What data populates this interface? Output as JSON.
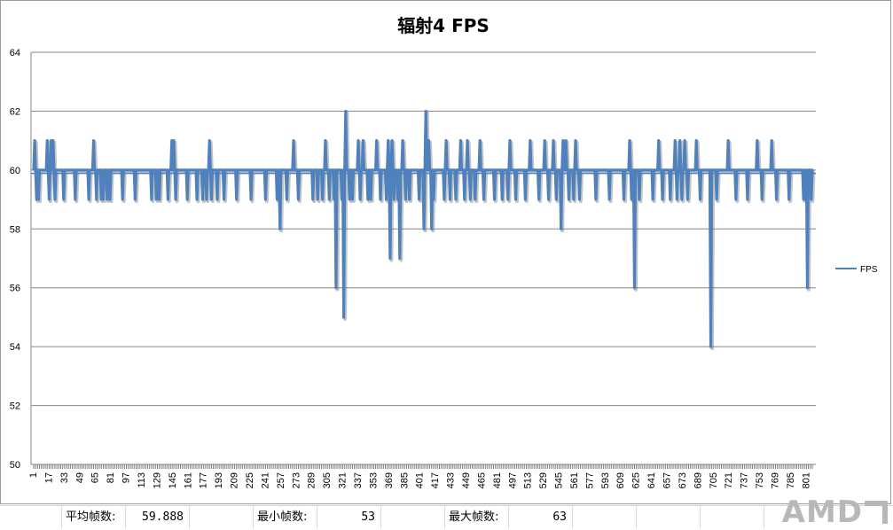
{
  "chart_data": {
    "type": "line",
    "title": "辐射4 FPS",
    "xlabel": "",
    "ylabel": "",
    "ylim": [
      50,
      64
    ],
    "yticks": [
      50,
      52,
      54,
      56,
      58,
      60,
      62,
      64
    ],
    "x_range": [
      1,
      808
    ],
    "xticks": [
      1,
      17,
      33,
      49,
      65,
      81,
      97,
      113,
      129,
      145,
      161,
      177,
      193,
      209,
      225,
      241,
      257,
      273,
      289,
      305,
      321,
      337,
      353,
      369,
      385,
      401,
      417,
      433,
      449,
      465,
      481,
      497,
      513,
      529,
      545,
      561,
      577,
      593,
      609,
      625,
      641,
      657,
      673,
      689,
      705,
      721,
      737,
      753,
      769,
      785,
      801
    ],
    "grid": true,
    "legend_position": "right",
    "colors": {
      "series": "#4f81bd",
      "average": "#4f81bd",
      "grid": "#868686"
    },
    "average_line": 59.888,
    "series": [
      {
        "name": "FPS",
        "baseline": 60,
        "excursions": [
          [
            2,
            61
          ],
          [
            4,
            59
          ],
          [
            6,
            59
          ],
          [
            15,
            61
          ],
          [
            17,
            59
          ],
          [
            19,
            61
          ],
          [
            21,
            61
          ],
          [
            23,
            59
          ],
          [
            32,
            59
          ],
          [
            44,
            59
          ],
          [
            58,
            59
          ],
          [
            63,
            61
          ],
          [
            66,
            59
          ],
          [
            71,
            59
          ],
          [
            73,
            59
          ],
          [
            77,
            59
          ],
          [
            80,
            59
          ],
          [
            93,
            59
          ],
          [
            106,
            59
          ],
          [
            123,
            59
          ],
          [
            128,
            59
          ],
          [
            131,
            59
          ],
          [
            140,
            59
          ],
          [
            144,
            61
          ],
          [
            146,
            61
          ],
          [
            148,
            59
          ],
          [
            160,
            59
          ],
          [
            170,
            59
          ],
          [
            176,
            59
          ],
          [
            180,
            59
          ],
          [
            183,
            61
          ],
          [
            185,
            59
          ],
          [
            191,
            59
          ],
          [
            198,
            59
          ],
          [
            211,
            59
          ],
          [
            226,
            59
          ],
          [
            241,
            59
          ],
          [
            253,
            59
          ],
          [
            256,
            58
          ],
          [
            263,
            59
          ],
          [
            270,
            61
          ],
          [
            275,
            59
          ],
          [
            290,
            59
          ],
          [
            295,
            59
          ],
          [
            300,
            59
          ],
          [
            303,
            61
          ],
          [
            307,
            59
          ],
          [
            312,
            59
          ],
          [
            314,
            56
          ],
          [
            320,
            59
          ],
          [
            322,
            55
          ],
          [
            324,
            62
          ],
          [
            328,
            59
          ],
          [
            331,
            59
          ],
          [
            337,
            61
          ],
          [
            339,
            59
          ],
          [
            342,
            61
          ],
          [
            347,
            59
          ],
          [
            350,
            59
          ],
          [
            356,
            61
          ],
          [
            360,
            59
          ],
          [
            366,
            59
          ],
          [
            368,
            61
          ],
          [
            370,
            57
          ],
          [
            372,
            61
          ],
          [
            374,
            59
          ],
          [
            378,
            59
          ],
          [
            380,
            57
          ],
          [
            383,
            61
          ],
          [
            386,
            59
          ],
          [
            390,
            59
          ],
          [
            400,
            59
          ],
          [
            405,
            58
          ],
          [
            407,
            62
          ],
          [
            410,
            61
          ],
          [
            413,
            58
          ],
          [
            415,
            59
          ],
          [
            426,
            59
          ],
          [
            428,
            61
          ],
          [
            432,
            59
          ],
          [
            438,
            59
          ],
          [
            443,
            61
          ],
          [
            447,
            59
          ],
          [
            450,
            61
          ],
          [
            453,
            59
          ],
          [
            458,
            59
          ],
          [
            463,
            61
          ],
          [
            467,
            59
          ],
          [
            478,
            59
          ],
          [
            486,
            59
          ],
          [
            492,
            59
          ],
          [
            494,
            61
          ],
          [
            500,
            59
          ],
          [
            510,
            59
          ],
          [
            515,
            61
          ],
          [
            524,
            59
          ],
          [
            530,
            61
          ],
          [
            534,
            59
          ],
          [
            539,
            61
          ],
          [
            542,
            59
          ],
          [
            547,
            58
          ],
          [
            549,
            61
          ],
          [
            552,
            61
          ],
          [
            555,
            59
          ],
          [
            560,
            59
          ],
          [
            562,
            61
          ],
          [
            566,
            59
          ],
          [
            583,
            59
          ],
          [
            597,
            59
          ],
          [
            612,
            59
          ],
          [
            618,
            61
          ],
          [
            620,
            59
          ],
          [
            623,
            56
          ],
          [
            628,
            59
          ],
          [
            642,
            59
          ],
          [
            648,
            61
          ],
          [
            652,
            59
          ],
          [
            660,
            59
          ],
          [
            665,
            61
          ],
          [
            667,
            59
          ],
          [
            670,
            61
          ],
          [
            672,
            59
          ],
          [
            675,
            61
          ],
          [
            678,
            59
          ],
          [
            687,
            61
          ],
          [
            691,
            59
          ],
          [
            702,
            54
          ],
          [
            708,
            59
          ],
          [
            720,
            61
          ],
          [
            728,
            59
          ],
          [
            740,
            59
          ],
          [
            750,
            61
          ],
          [
            755,
            59
          ],
          [
            765,
            61
          ],
          [
            770,
            59
          ],
          [
            783,
            59
          ],
          [
            798,
            59
          ],
          [
            800,
            59
          ],
          [
            802,
            56
          ],
          [
            804,
            60
          ],
          [
            806,
            59
          ]
        ]
      }
    ]
  },
  "summary": {
    "avg_label": "平均帧数:",
    "avg_value": "59.888",
    "min_label": "最小帧数:",
    "min_value": "53",
    "max_label": "最大帧数:",
    "max_value": "63"
  },
  "logo": {
    "text": "AMD"
  }
}
